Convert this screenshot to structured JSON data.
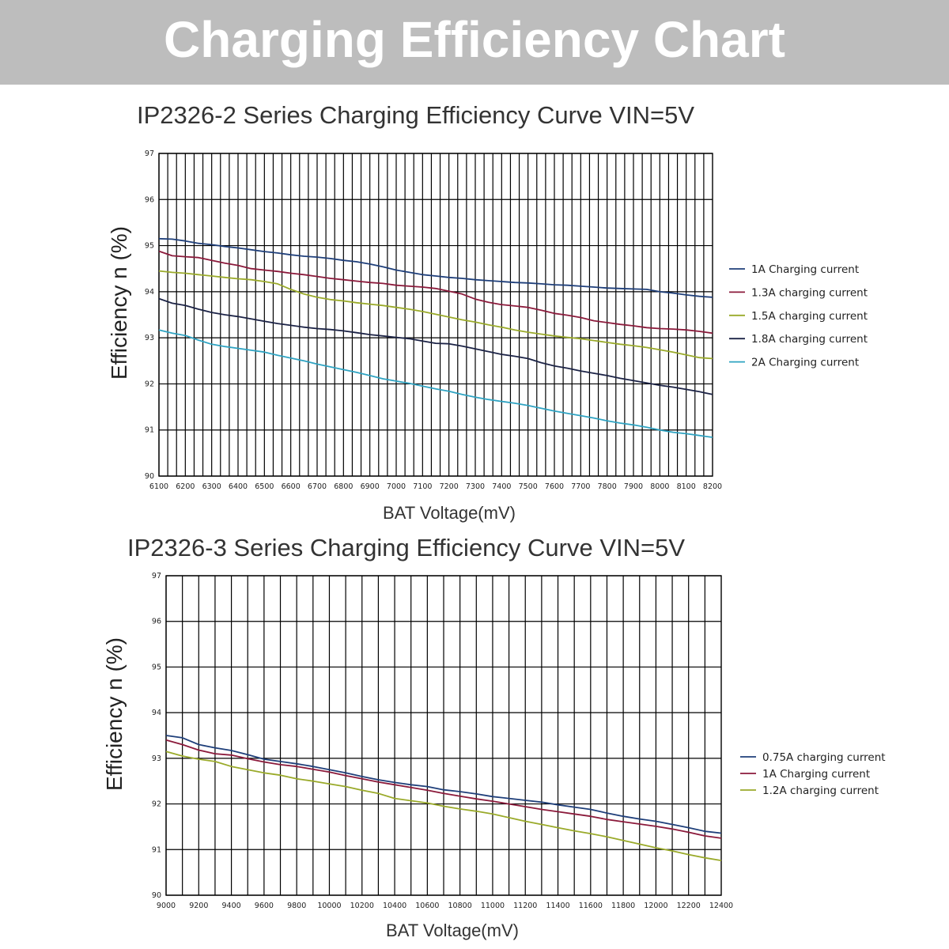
{
  "header": {
    "title": "Charging Efficiency Chart"
  },
  "colors": {
    "background": "#ffffff",
    "banner": "#bdbdbd",
    "banner_text": "#ffffff",
    "grid": "#000000",
    "navy": "#1f3f7a",
    "crimson": "#8b1a3b",
    "olive": "#9aaa2a",
    "darknavy": "#1c2346",
    "teal": "#2fa3c2"
  },
  "chart_data": [
    {
      "type": "line",
      "title": "IP2326-2 Series Charging Efficiency Curve VIN=5V",
      "xlabel": "BAT Voltage(mV)",
      "ylabel": "Efficiency n (%)",
      "xlim": [
        6100,
        8200
      ],
      "ylim": [
        90,
        97
      ],
      "grid": true,
      "legend_position": "right",
      "x_ticks": [
        6100,
        6200,
        6300,
        6400,
        6500,
        6600,
        6700,
        6800,
        6900,
        7000,
        7100,
        7200,
        7300,
        7400,
        7500,
        7600,
        7700,
        7800,
        7900,
        8000,
        8100,
        8200
      ],
      "y_ticks": [
        90,
        91,
        92,
        93,
        94,
        95,
        96,
        97
      ],
      "x": [
        6100,
        6150,
        6200,
        6250,
        6300,
        6350,
        6400,
        6450,
        6500,
        6550,
        6600,
        6650,
        6700,
        6750,
        6800,
        6850,
        6900,
        6950,
        7000,
        7050,
        7100,
        7150,
        7200,
        7250,
        7300,
        7350,
        7400,
        7450,
        7500,
        7550,
        7600,
        7650,
        7700,
        7750,
        7800,
        7850,
        7900,
        7950,
        8000,
        8050,
        8100,
        8150,
        8200
      ],
      "series": [
        {
          "name": "1A Charging current",
          "color": "#1f3f7a",
          "values": [
            95.15,
            95.14,
            95.1,
            95.05,
            95.02,
            94.98,
            94.95,
            94.91,
            94.87,
            94.84,
            94.8,
            94.77,
            94.75,
            94.72,
            94.68,
            94.65,
            94.6,
            94.54,
            94.47,
            94.42,
            94.37,
            94.34,
            94.31,
            94.29,
            94.26,
            94.24,
            94.22,
            94.2,
            94.19,
            94.17,
            94.15,
            94.14,
            94.12,
            94.1,
            94.08,
            94.07,
            94.06,
            94.05,
            94.0,
            93.97,
            93.93,
            93.9,
            93.88
          ]
        },
        {
          "name": "1.3A charging current",
          "color": "#8b1a3b",
          "values": [
            94.88,
            94.78,
            94.76,
            94.74,
            94.68,
            94.62,
            94.57,
            94.5,
            94.47,
            94.44,
            94.4,
            94.37,
            94.33,
            94.29,
            94.26,
            94.23,
            94.2,
            94.18,
            94.14,
            94.12,
            94.1,
            94.07,
            94.01,
            93.95,
            93.84,
            93.77,
            93.72,
            93.69,
            93.66,
            93.6,
            93.53,
            93.49,
            93.44,
            93.37,
            93.33,
            93.29,
            93.26,
            93.22,
            93.2,
            93.19,
            93.17,
            93.14,
            93.1
          ]
        },
        {
          "name": "1.5A charging current",
          "color": "#9aaa2a",
          "values": [
            94.45,
            94.42,
            94.4,
            94.37,
            94.34,
            94.31,
            94.28,
            94.26,
            94.22,
            94.17,
            94.05,
            93.95,
            93.88,
            93.83,
            93.8,
            93.76,
            93.73,
            93.7,
            93.66,
            93.62,
            93.57,
            93.51,
            93.45,
            93.39,
            93.34,
            93.28,
            93.23,
            93.17,
            93.12,
            93.08,
            93.04,
            93.01,
            92.98,
            92.94,
            92.9,
            92.86,
            92.83,
            92.79,
            92.74,
            92.69,
            92.63,
            92.57,
            92.55
          ]
        },
        {
          "name": "1.8A charging current",
          "color": "#1c2346",
          "values": [
            93.85,
            93.75,
            93.7,
            93.62,
            93.55,
            93.5,
            93.46,
            93.41,
            93.36,
            93.31,
            93.27,
            93.23,
            93.2,
            93.18,
            93.15,
            93.11,
            93.07,
            93.04,
            93.01,
            92.98,
            92.93,
            92.88,
            92.87,
            92.82,
            92.76,
            92.7,
            92.64,
            92.6,
            92.55,
            92.46,
            92.39,
            92.34,
            92.28,
            92.23,
            92.18,
            92.12,
            92.07,
            92.02,
            91.97,
            91.93,
            91.88,
            91.83,
            91.77
          ]
        },
        {
          "name": "2A Charging current",
          "color": "#2fa3c2",
          "values": [
            93.17,
            93.1,
            93.05,
            92.95,
            92.86,
            92.81,
            92.77,
            92.73,
            92.69,
            92.62,
            92.56,
            92.5,
            92.43,
            92.37,
            92.31,
            92.25,
            92.18,
            92.11,
            92.06,
            92.01,
            91.95,
            91.89,
            91.84,
            91.77,
            91.71,
            91.66,
            91.62,
            91.58,
            91.53,
            91.47,
            91.41,
            91.36,
            91.31,
            91.26,
            91.2,
            91.15,
            91.11,
            91.06,
            91.0,
            90.95,
            90.92,
            90.88,
            90.84
          ]
        }
      ]
    },
    {
      "type": "line",
      "title": "IP2326-3 Series Charging Efficiency Curve VIN=5V",
      "xlabel": "BAT Voltage(mV)",
      "ylabel": "Efficiency n (%)",
      "xlim": [
        9000,
        12400
      ],
      "ylim": [
        90,
        97
      ],
      "grid": true,
      "legend_position": "right",
      "x_ticks": [
        9000,
        9200,
        9400,
        9600,
        9800,
        10000,
        10200,
        10400,
        10600,
        10800,
        11000,
        11200,
        11400,
        11600,
        11800,
        12000,
        12200,
        12400
      ],
      "y_ticks": [
        90,
        91,
        92,
        93,
        94,
        95,
        96,
        97
      ],
      "x": [
        9000,
        9100,
        9200,
        9300,
        9400,
        9500,
        9600,
        9700,
        9800,
        9900,
        10000,
        10100,
        10200,
        10300,
        10400,
        10500,
        10600,
        10700,
        10800,
        10900,
        11000,
        11100,
        11200,
        11300,
        11400,
        11500,
        11600,
        11700,
        11800,
        11900,
        12000,
        12100,
        12200,
        12300,
        12400
      ],
      "series": [
        {
          "name": "0.75A charging current",
          "color": "#1f3f7a",
          "values": [
            93.5,
            93.45,
            93.3,
            93.23,
            93.17,
            93.08,
            92.98,
            92.93,
            92.88,
            92.82,
            92.75,
            92.68,
            92.6,
            92.53,
            92.47,
            92.42,
            92.38,
            92.31,
            92.27,
            92.22,
            92.16,
            92.12,
            92.08,
            92.04,
            91.98,
            91.93,
            91.88,
            91.8,
            91.73,
            91.67,
            91.62,
            91.55,
            91.48,
            91.4,
            91.36
          ]
        },
        {
          "name": "1A Charging current",
          "color": "#8b1a3b",
          "values": [
            93.4,
            93.3,
            93.18,
            93.1,
            93.07,
            92.99,
            92.92,
            92.86,
            92.82,
            92.76,
            92.7,
            92.62,
            92.55,
            92.48,
            92.42,
            92.36,
            92.3,
            92.23,
            92.17,
            92.11,
            92.06,
            92.0,
            91.94,
            91.88,
            91.83,
            91.78,
            91.73,
            91.66,
            91.61,
            91.56,
            91.51,
            91.45,
            91.38,
            91.3,
            91.25
          ]
        },
        {
          "name": "1.2A charging current",
          "color": "#9aaa2a",
          "values": [
            93.15,
            93.05,
            92.98,
            92.93,
            92.82,
            92.75,
            92.68,
            92.63,
            92.55,
            92.5,
            92.44,
            92.38,
            92.3,
            92.23,
            92.12,
            92.07,
            92.02,
            91.95,
            91.89,
            91.84,
            91.78,
            91.7,
            91.62,
            91.55,
            91.48,
            91.41,
            91.35,
            91.28,
            91.2,
            91.12,
            91.04,
            90.97,
            90.89,
            90.82,
            90.76
          ]
        }
      ]
    }
  ]
}
